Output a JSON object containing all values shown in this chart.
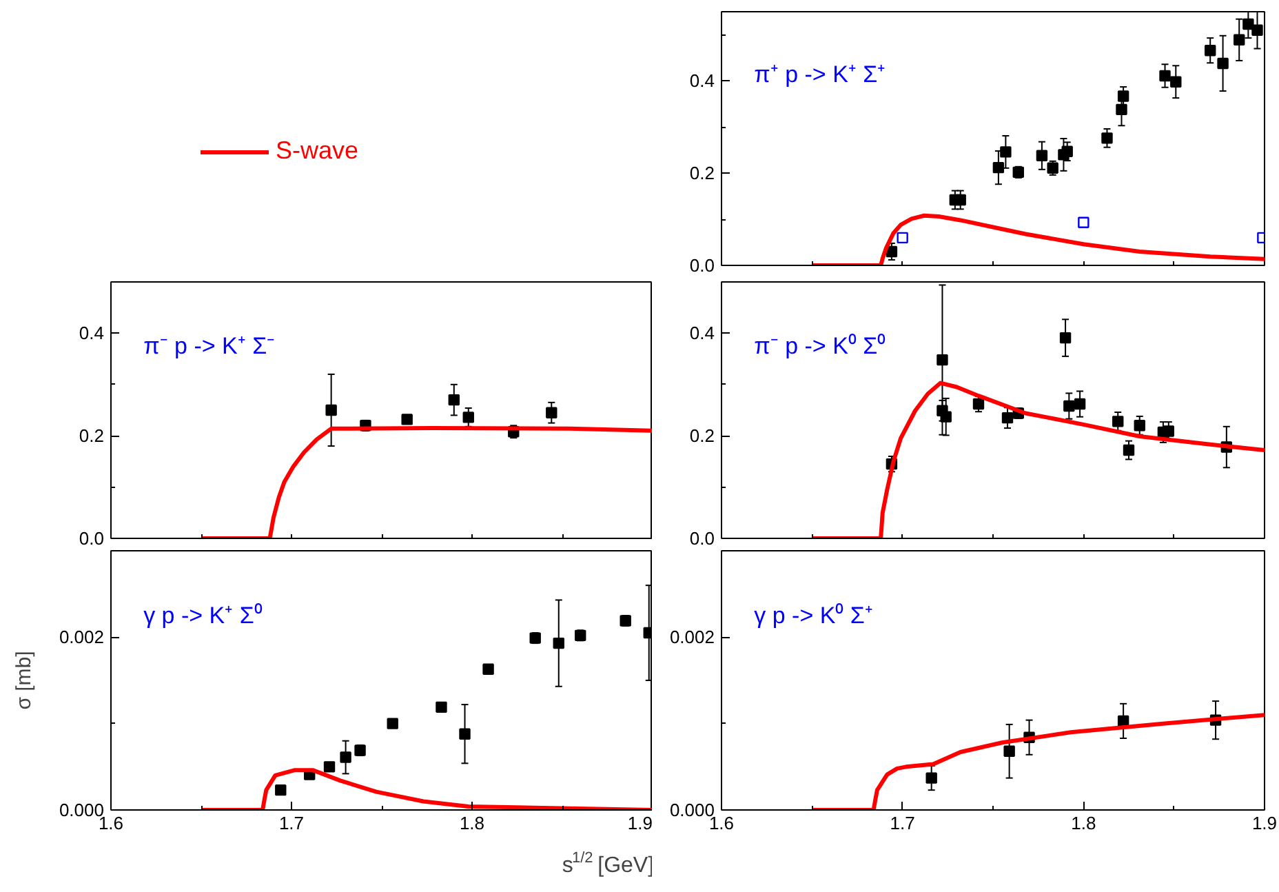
{
  "chart_data": [
    {
      "type": "scatter",
      "legend": "left",
      "tick_labels": "y",
      "annotations": [
        "π⁺ p -> K⁺ Σ⁺"
      ],
      "xlim": [
        1.6,
        1.9
      ],
      "xticks": [
        {
          "value": 1.6,
          "label": null
        },
        {
          "value": 1.65,
          "label": null
        },
        {
          "value": 1.7,
          "label": null
        },
        {
          "value": 1.75,
          "label": null
        },
        {
          "value": 1.8,
          "label": null
        },
        {
          "value": 1.85,
          "label": null
        },
        {
          "value": 1.9,
          "label": null
        }
      ],
      "ylim": [
        0,
        0.55
      ],
      "yticks": [
        {
          "value": 0,
          "label": "0.0"
        },
        {
          "value": 0.1,
          "label": null
        },
        {
          "value": 0.2,
          "label": "0.2"
        },
        {
          "value": 0.3,
          "label": null
        },
        {
          "value": 0.4,
          "label": "0.4"
        },
        {
          "value": 0.5,
          "label": null
        }
      ],
      "series": [
        {
          "color": "#000000",
          "marker": "square",
          "x": [
            1.694,
            1.729,
            1.732,
            1.753,
            1.757,
            1.764,
            1.777,
            1.783,
            1.789,
            1.791,
            1.813,
            1.821,
            1.822,
            1.845,
            1.851,
            1.87,
            1.877,
            1.886,
            1.891,
            1.896
          ],
          "values": [
            0.03,
            0.142,
            0.142,
            0.212,
            0.246,
            0.202,
            0.238,
            0.211,
            0.24,
            0.247,
            0.276,
            0.338,
            0.367,
            0.411,
            0.398,
            0.466,
            0.438,
            0.489,
            0.523,
            0.51
          ],
          "errors": [
            0.018,
            0.02,
            0.02,
            0.036,
            0.035,
            0.012,
            0.03,
            0.015,
            0.035,
            0.02,
            0.02,
            0.035,
            0.02,
            0.025,
            0.035,
            0.027,
            0.06,
            0.045,
            0.03,
            0.04
          ]
        },
        {
          "color": "#0000ff",
          "marker": "square",
          "x": [
            1.7,
            1.8,
            1.899
          ],
          "values": [
            0.06,
            0.093,
            0.06
          ]
        },
        {
          "name": "S-wave",
          "type": "line",
          "color": "#ff0000",
          "x": [
            1.65,
            1.688,
            1.689,
            1.691,
            1.695,
            1.699,
            1.705,
            1.712,
            1.72,
            1.732,
            1.75,
            1.768,
            1.8,
            1.831,
            1.87,
            1.9
          ],
          "values": [
            0,
            0,
            0.015,
            0.038,
            0.07,
            0.088,
            0.101,
            0.108,
            0.106,
            0.098,
            0.083,
            0.068,
            0.046,
            0.03,
            0.019,
            0.014
          ]
        }
      ]
    },
    {
      "type": "scatter",
      "tick_labels": "y",
      "annotations": [
        "π⁻ p -> K⁺ Σ⁻"
      ],
      "xlim": [
        1.6,
        1.9
      ],
      "xticks": [
        {
          "value": 1.6,
          "label": null
        },
        {
          "value": 1.65,
          "label": null
        },
        {
          "value": 1.7,
          "label": null
        },
        {
          "value": 1.75,
          "label": null
        },
        {
          "value": 1.8,
          "label": null
        },
        {
          "value": 1.85,
          "label": null
        },
        {
          "value": 1.9,
          "label": null
        }
      ],
      "ylim": [
        0,
        0.5
      ],
      "yticks": [
        {
          "value": 0,
          "label": "0.0"
        },
        {
          "value": 0.1,
          "label": null
        },
        {
          "value": 0.2,
          "label": "0.2"
        },
        {
          "value": 0.3,
          "label": null
        },
        {
          "value": 0.4,
          "label": "0.4"
        }
      ],
      "series": [
        {
          "color": "#000000",
          "marker": "square",
          "x": [
            1.722,
            1.741,
            1.764,
            1.79,
            1.798,
            1.823,
            1.844
          ],
          "values": [
            0.25,
            0.22,
            0.232,
            0.27,
            0.236,
            0.208,
            0.245
          ],
          "errors": [
            0.07,
            0.01,
            null,
            0.03,
            0.018,
            0.012,
            0.02
          ]
        },
        {
          "type": "line",
          "color": "#ff0000",
          "x": [
            1.65,
            1.688,
            1.69,
            1.693,
            1.696,
            1.701,
            1.707,
            1.714,
            1.722,
            1.778,
            1.854,
            1.9
          ],
          "values": [
            0,
            0,
            0.04,
            0.08,
            0.11,
            0.14,
            0.168,
            0.193,
            0.214,
            0.215,
            0.214,
            0.21
          ]
        }
      ]
    },
    {
      "type": "scatter",
      "tick_labels": "y",
      "annotations": [
        "π⁻ p -> K⁰ Σ⁰"
      ],
      "xlim": [
        1.6,
        1.9
      ],
      "xticks": [
        {
          "value": 1.6,
          "label": null
        },
        {
          "value": 1.65,
          "label": null
        },
        {
          "value": 1.7,
          "label": null
        },
        {
          "value": 1.75,
          "label": null
        },
        {
          "value": 1.8,
          "label": null
        },
        {
          "value": 1.85,
          "label": null
        },
        {
          "value": 1.9,
          "label": null
        }
      ],
      "ylim": [
        0,
        0.5
      ],
      "yticks": [
        {
          "value": 0,
          "label": "0.0"
        },
        {
          "value": 0.1,
          "label": null
        },
        {
          "value": 0.2,
          "label": "0.2"
        },
        {
          "value": 0.3,
          "label": null
        },
        {
          "value": 0.4,
          "label": "0.4"
        }
      ],
      "series": [
        {
          "color": "#000000",
          "marker": "square",
          "x": [
            1.694,
            1.722,
            1.722,
            1.724,
            1.742,
            1.758,
            1.764,
            1.79,
            1.792,
            1.798,
            1.819,
            1.825,
            1.831,
            1.844,
            1.847,
            1.879
          ],
          "values": [
            0.145,
            0.348,
            0.249,
            0.237,
            0.262,
            0.235,
            0.244,
            0.391,
            0.258,
            0.262,
            0.228,
            0.172,
            0.22,
            0.207,
            0.209,
            0.178
          ],
          "errors": [
            0.015,
            0.146,
            0.02,
            0.036,
            0.015,
            0.02,
            0.01,
            0.036,
            0.025,
            0.025,
            0.018,
            0.018,
            0.018,
            0.02,
            0.018,
            0.04
          ]
        },
        {
          "type": "line",
          "color": "#ff0000",
          "x": [
            1.65,
            1.688,
            1.689,
            1.6915,
            1.695,
            1.699,
            1.707,
            1.714,
            1.721,
            1.73,
            1.742,
            1.768,
            1.8,
            1.831,
            1.87,
            1.9
          ],
          "values": [
            0,
            0,
            0.05,
            0.095,
            0.15,
            0.195,
            0.249,
            0.282,
            0.303,
            0.295,
            0.278,
            0.244,
            0.222,
            0.199,
            0.183,
            0.172
          ]
        }
      ]
    },
    {
      "type": "scatter",
      "ylabel": "σ [mb]",
      "xlabel": "s$^{1/2}$ [GeV]",
      "annotations": [
        "γ p ->  K⁺ Σ⁰"
      ],
      "xlim": [
        1.6,
        1.9
      ],
      "xticks": [
        1.6,
        {
          "value": 1.65,
          "label": null
        },
        1.7,
        {
          "value": 1.75,
          "label": null
        },
        1.8,
        {
          "value": 1.85,
          "label": null
        },
        1.9
      ],
      "ylim": [
        0,
        0.003
      ],
      "yticks": [
        {
          "value": 0,
          "label": "0.000"
        },
        {
          "value": 0.001,
          "label": null
        },
        {
          "value": 0.002,
          "label": "0.002"
        }
      ],
      "series": [
        {
          "color": "#000000",
          "marker": "square",
          "x": [
            1.694,
            1.71,
            1.721,
            1.73,
            1.738,
            1.756,
            1.783,
            1.796,
            1.809,
            1.835,
            1.848,
            1.86,
            1.885,
            1.898
          ],
          "values": [
            0.00023,
            0.00041,
            0.0005,
            0.00061,
            0.00069,
            0.001,
            0.00119,
            0.00088,
            0.00163,
            0.00199,
            0.00193,
            0.00202,
            0.00219,
            0.00205
          ],
          "errors": [
            3e-05,
            5e-05,
            5e-05,
            0.00019,
            6e-05,
            5e-05,
            4e-05,
            0.00034,
            5e-05,
            6e-05,
            0.0005,
            6e-05,
            6e-05,
            0.00055
          ]
        },
        {
          "type": "line",
          "color": "#ff0000",
          "x": [
            1.65,
            1.684,
            1.685,
            1.686,
            1.691,
            1.7015,
            1.712,
            1.727,
            1.747,
            1.773,
            1.798,
            1.849,
            1.9
          ],
          "values": [
            0,
            0,
            0.00012,
            0.00023,
            0.0004,
            0.00046,
            0.00046,
            0.00034,
            0.00021,
            0.0001,
            4e-05,
            2e-05,
            0
          ]
        }
      ]
    },
    {
      "type": "scatter",
      "annotations": [
        "γ p ->  K⁰ Σ⁺"
      ],
      "xlim": [
        1.6,
        1.9
      ],
      "xticks": [
        1.6,
        {
          "value": 1.65,
          "label": null
        },
        1.7,
        {
          "value": 1.75,
          "label": null
        },
        1.8,
        {
          "value": 1.85,
          "label": null
        },
        1.9
      ],
      "ylim": [
        0,
        0.003
      ],
      "yticks": [
        {
          "value": 0,
          "label": "0.000"
        },
        {
          "value": 0.001,
          "label": null
        },
        {
          "value": 0.002,
          "label": "0.002"
        }
      ],
      "series": [
        {
          "color": "#000000",
          "marker": "square",
          "x": [
            1.716,
            1.759,
            1.77,
            1.822,
            1.873
          ],
          "values": [
            0.00037,
            0.00068,
            0.00084,
            0.00103,
            0.00104
          ],
          "errors": [
            0.00014,
            0.00031,
            0.0002,
            0.0002,
            0.00022
          ]
        },
        {
          "type": "line",
          "color": "#ff0000",
          "x": [
            1.65,
            1.684,
            1.685,
            1.686,
            1.6915,
            1.697,
            1.702,
            1.717,
            1.732,
            1.755,
            1.793,
            1.844,
            1.9
          ],
          "values": [
            0,
            0,
            0.00012,
            0.00023,
            0.00041,
            0.00048,
            0.0005,
            0.00053,
            0.00067,
            0.00078,
            0.0009,
            0.001,
            0.0011
          ]
        }
      ]
    }
  ]
}
